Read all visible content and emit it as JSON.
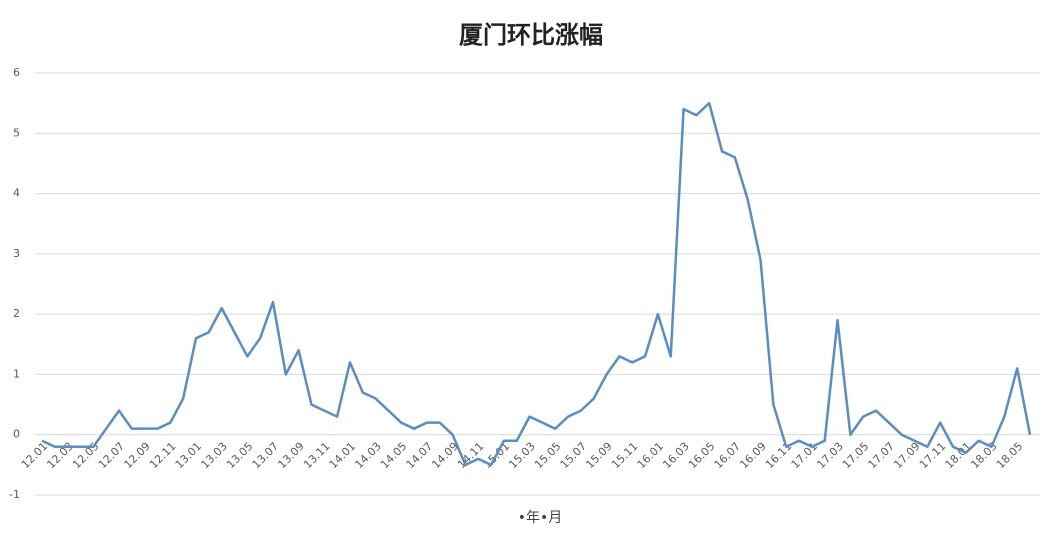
{
  "chart_data": {
    "type": "line",
    "title": "厦门环比涨幅",
    "x_label": "•年•月",
    "categories": [
      "12.01",
      null,
      "12.03",
      null,
      "12.05",
      null,
      "12.07",
      null,
      "12.09",
      null,
      "12.11",
      null,
      "13.01",
      null,
      "13.03",
      null,
      "13.05",
      null,
      "13.07",
      null,
      "13.09",
      null,
      "13.11",
      null,
      "14.01",
      null,
      "14.03",
      null,
      "14.05",
      null,
      "14.07",
      null,
      "14.09",
      null,
      "14.11",
      null,
      "15.01",
      null,
      "15.03",
      null,
      "15.05",
      null,
      "15.07",
      null,
      "15.09",
      null,
      "15.11",
      null,
      "16.01",
      null,
      "16.03",
      null,
      "16.05",
      null,
      "16.07",
      null,
      "16.09",
      null,
      "16.11",
      null,
      "17.01",
      null,
      "17.03",
      null,
      "17.05",
      null,
      "17.07",
      null,
      "17.09",
      null,
      "17.11",
      null,
      "18.01",
      null,
      "18.03",
      null,
      "18.05",
      null
    ],
    "series": [
      {
        "name": "厦门",
        "color": "#5b8cc2",
        "values": [
          -0.1,
          -0.2,
          -0.2,
          -0.2,
          -0.2,
          0.1,
          0.4,
          0.1,
          0.1,
          0.1,
          0.2,
          0.6,
          1.6,
          1.7,
          2.1,
          1.7,
          1.3,
          1.6,
          2.2,
          1.0,
          1.4,
          0.5,
          0.4,
          0.3,
          1.2,
          0.7,
          0.6,
          0.4,
          0.2,
          0.1,
          0.2,
          0.2,
          0.0,
          -0.5,
          -0.4,
          -0.5,
          -0.1,
          -0.1,
          0.3,
          0.2,
          0.1,
          0.3,
          0.4,
          0.6,
          1.0,
          1.3,
          1.2,
          1.3,
          2.0,
          1.3,
          5.4,
          5.3,
          5.5,
          4.7,
          4.6,
          3.9,
          2.9,
          0.5,
          -0.2,
          -0.1,
          -0.2,
          -0.1,
          1.9,
          0.0,
          0.3,
          0.4,
          0.2,
          0.0,
          -0.1,
          -0.2,
          0.2,
          -0.2,
          -0.3,
          -0.1,
          -0.2,
          0.3,
          1.1,
          0.0
        ]
      }
    ],
    "ylim": [
      -1,
      6
    ],
    "yticks": [
      -1,
      0,
      1,
      2,
      3,
      4,
      5,
      6
    ],
    "grid": true
  }
}
